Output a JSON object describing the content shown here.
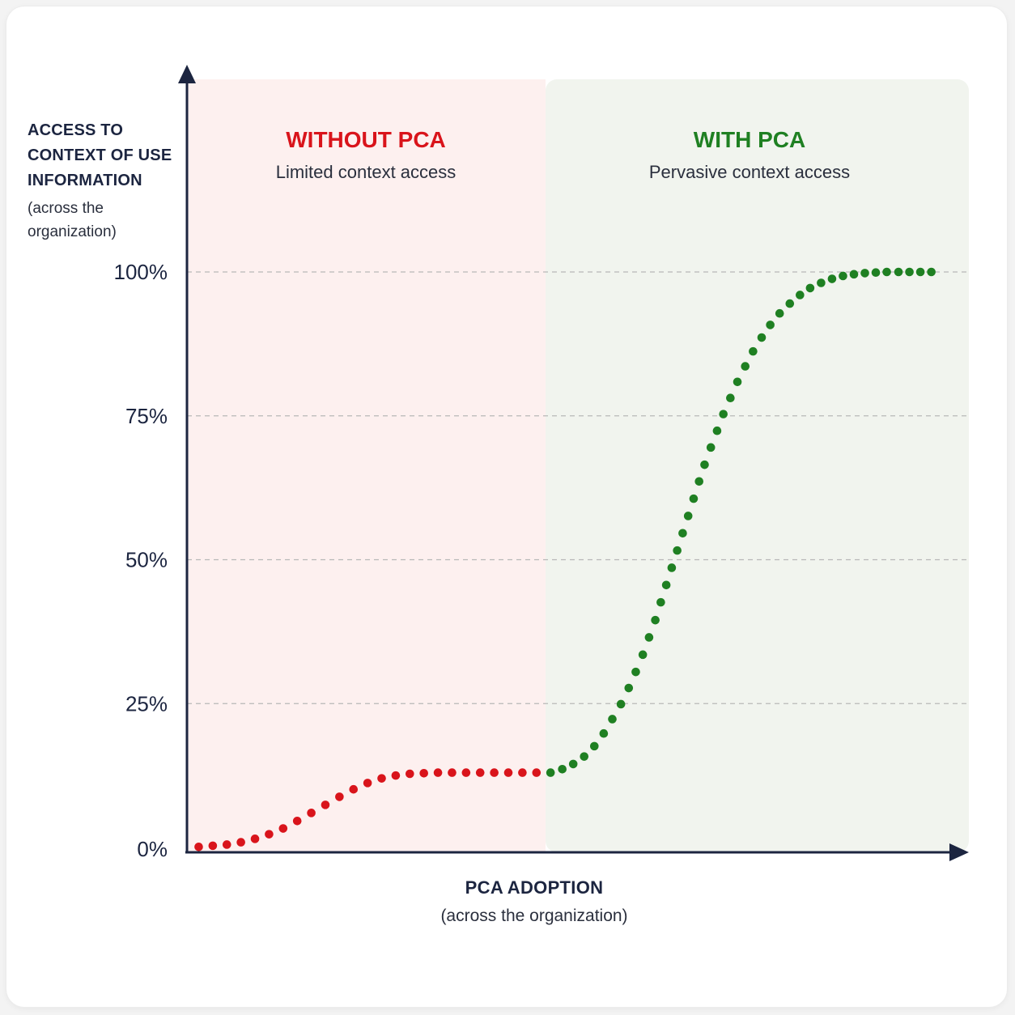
{
  "y_axis": {
    "title": "ACCESS TO\nCONTEXT OF USE\nINFORMATION",
    "subtitle": "(across the\norganization)"
  },
  "x_axis": {
    "title": "PCA ADOPTION",
    "subtitle": "(across the organization)"
  },
  "regions": {
    "without": {
      "title": "WITHOUT PCA",
      "subtitle": "Limited context access",
      "color": "#d9141b",
      "bg": "#fdf0ef"
    },
    "with": {
      "title": "WITH PCA",
      "subtitle": "Pervasive context access",
      "color": "#1f8022",
      "bg": "#f1f4ee"
    }
  },
  "chart_data": {
    "type": "scatter",
    "ylim": [
      0,
      100
    ],
    "xlim": [
      0,
      100
    ],
    "grid": true,
    "y_ticks": [
      "0%",
      "25%",
      "50%",
      "75%",
      "100%"
    ],
    "y_tick_values": [
      0,
      25,
      50,
      75,
      100
    ],
    "split_x": 46,
    "series": [
      {
        "color": "#d9141b",
        "x": [
          1.5,
          3.3,
          5.1,
          6.9,
          8.7,
          10.5,
          12.3,
          14.1,
          15.9,
          17.7,
          19.5,
          21.3,
          23.1,
          24.9,
          26.7,
          28.5,
          30.3,
          32.1,
          33.9,
          35.7,
          37.5,
          39.3,
          41.1,
          42.9,
          44.7
        ],
        "y": [
          0.1,
          0.3,
          0.5,
          0.9,
          1.5,
          2.3,
          3.3,
          4.6,
          6.0,
          7.4,
          8.8,
          10.1,
          11.2,
          12.0,
          12.5,
          12.8,
          12.9,
          13.0,
          13.0,
          13.0,
          13.0,
          13.0,
          13.0,
          13.0,
          13.0
        ]
      },
      {
        "color": "#1f8022",
        "x": [
          46.5,
          48.0,
          49.4,
          50.8,
          52.1,
          53.3,
          54.4,
          55.5,
          56.5,
          57.4,
          58.3,
          59.1,
          59.9,
          60.6,
          61.3,
          62.0,
          62.7,
          63.4,
          64.1,
          64.8,
          65.5,
          66.2,
          67.0,
          67.8,
          68.6,
          69.5,
          70.4,
          71.4,
          72.4,
          73.5,
          74.6,
          75.8,
          77.1,
          78.4,
          79.7,
          81.1,
          82.5,
          83.9,
          85.3,
          86.7,
          88.1,
          89.5,
          91.0,
          92.4,
          93.8,
          95.2
        ],
        "y": [
          13.0,
          13.6,
          14.5,
          15.8,
          17.6,
          19.8,
          22.3,
          24.9,
          27.7,
          30.5,
          33.5,
          36.5,
          39.5,
          42.6,
          45.6,
          48.6,
          51.6,
          54.6,
          57.6,
          60.6,
          63.6,
          66.5,
          69.5,
          72.4,
          75.3,
          78.1,
          80.9,
          83.6,
          86.2,
          88.6,
          90.8,
          92.8,
          94.5,
          96.0,
          97.2,
          98.1,
          98.8,
          99.3,
          99.6,
          99.8,
          99.9,
          100.0,
          100.0,
          100.0,
          100.0,
          100.0
        ]
      }
    ]
  }
}
